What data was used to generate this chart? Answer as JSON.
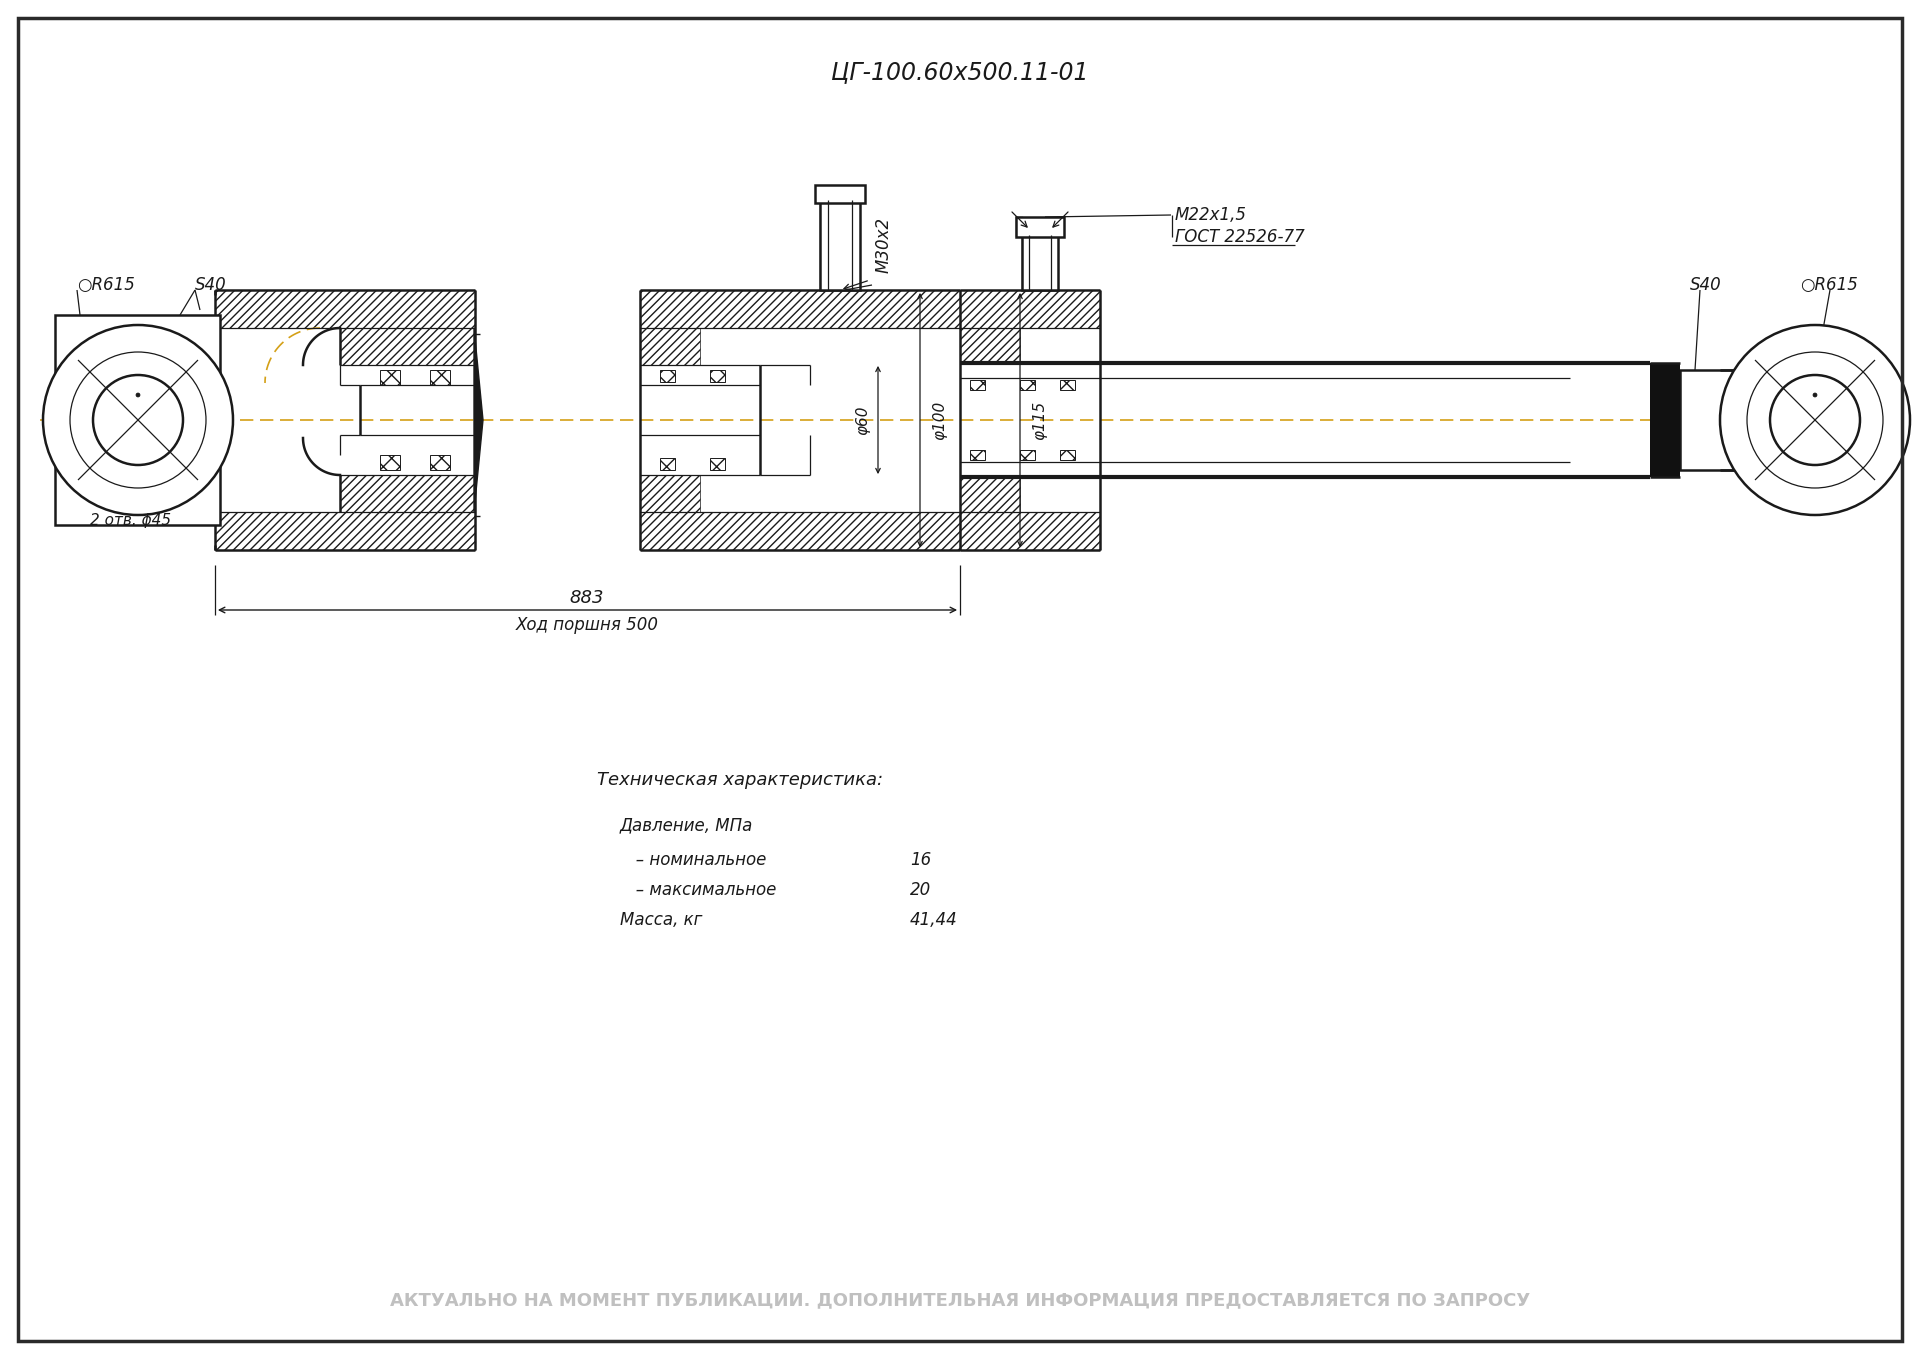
{
  "title": "ЦГ-100.60х500.11-01",
  "bg_color": "#ffffff",
  "border_color": "#2a2a2a",
  "drawing_color": "#1a1a1a",
  "tech_header": "Техническая характеристика:",
  "label_pressure": "Давление, МПа",
  "label_nominal": "   – номинальное",
  "label_max": "   – максимальное",
  "label_mass": "Масса, кг",
  "val_nominal": "16",
  "val_max": "20",
  "val_mass": "41,44",
  "footer_text": "АКТУАЛЬНО НА МОМЕНТ ПУБЛИКАЦИИ. ДОПОЛНИТЕЛЬНАЯ ИНФОРМАЦИЯ ПРЕДОСТАВЛЯЕТСЯ ПО ЗАПРОСУ",
  "footer_color": "#c0c0c0",
  "dim_883": "883",
  "dim_stroke": "Ход поршня 500",
  "label_m30x2": "М30х2",
  "label_m22x15": "М22х1,5",
  "label_gost": "ГОСТ 22526-77",
  "label_phi60": "φ60",
  "label_phi100": "φ100",
  "label_phi115": "φ115",
  "label_s40_left": "S40",
  "label_s40_right": "S40",
  "label_r615_left": "○R615",
  "label_r615_right": "○R615",
  "label_2otv": "2 отв. ϕ45"
}
